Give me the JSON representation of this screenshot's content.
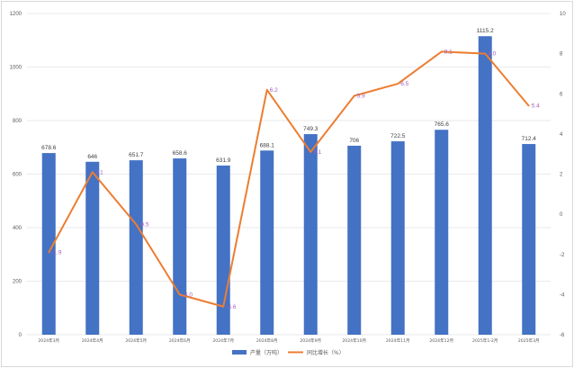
{
  "chart_data": {
    "type": "bar",
    "categories": [
      "2024年3月",
      "2024年4月",
      "2024年5月",
      "2024年6月",
      "2024年7月",
      "2024年8月",
      "2024年9月",
      "2024年10月",
      "2024年11月",
      "2024年12月",
      "2025年1-2月",
      "2025年3月"
    ],
    "series": [
      {
        "name": "产量（万吨）",
        "type": "bar",
        "axis": "left",
        "color": "#4472c4",
        "values": [
          678.6,
          646,
          651.7,
          658.6,
          631.9,
          688.1,
          749.3,
          706,
          722.5,
          765.6,
          1115.2,
          712.4
        ],
        "labels": [
          "678.6",
          "646",
          "651.7",
          "658.6",
          "631.9",
          "688.1",
          "749.3",
          "706",
          "722.5",
          "765.6",
          "1115.2",
          "712.4"
        ]
      },
      {
        "name": "同比增长（%）",
        "type": "line",
        "axis": "right",
        "color": "#ed7d31",
        "values": [
          -1.9,
          2.1,
          -0.5,
          -4.0,
          -4.6,
          6.2,
          3.1,
          5.9,
          6.5,
          8.1,
          8.0,
          5.4
        ],
        "labels": [
          "-1.9",
          "2.1",
          "-0.5",
          "-4.0",
          "-4.6",
          "6.2",
          "3.1",
          "5.9",
          "6.5",
          "8.1",
          "8.0",
          "5.4"
        ]
      }
    ],
    "left_axis": {
      "ylim": [
        0,
        1200
      ],
      "ticks": [
        "0",
        "200",
        "400",
        "600",
        "800",
        "1000",
        "1200"
      ]
    },
    "right_axis": {
      "ylim": [
        -6,
        10
      ],
      "ticks": [
        "-6",
        "-4",
        "-2",
        "0",
        "2",
        "4",
        "6",
        "8",
        "10"
      ]
    },
    "grid": true,
    "legend_position": "bottom"
  }
}
